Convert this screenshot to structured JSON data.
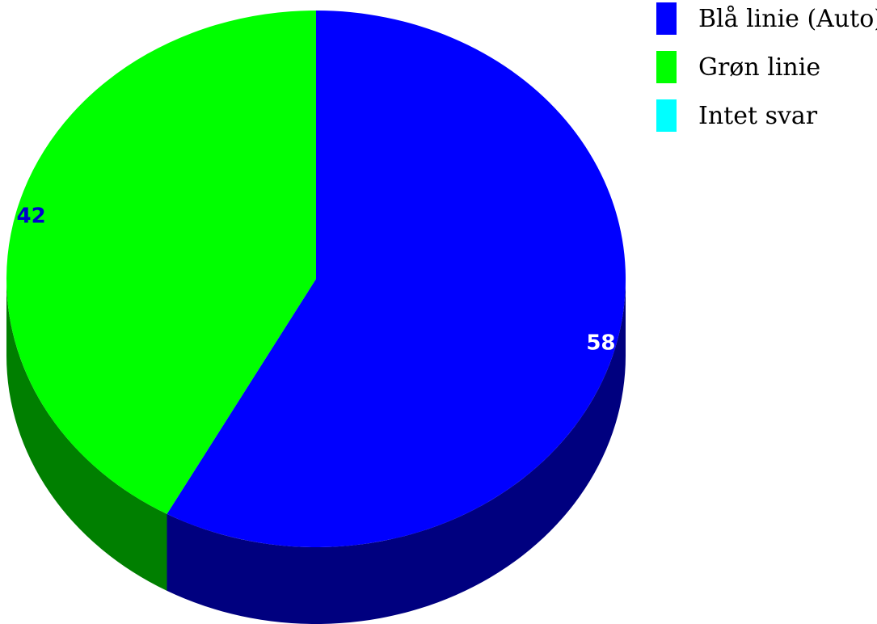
{
  "chart_data": {
    "type": "pie",
    "title": "",
    "three_d": true,
    "legend_position": "top-right",
    "slices": [
      {
        "label": "Blå linie (Auto)",
        "value": 58,
        "color": "#0000FF",
        "side_color": "#00007F",
        "label_color": "#FFFFFF",
        "value_label": "58"
      },
      {
        "label": "Grøn linie",
        "value": 42,
        "color": "#00FF00",
        "side_color": "#007F00",
        "label_color": "#0000CC",
        "value_label": "42"
      },
      {
        "label": "Intet svar",
        "value": 0,
        "color": "#00FFFF",
        "side_color": "#007F7F",
        "label_color": "#000000",
        "value_label": ""
      }
    ]
  }
}
